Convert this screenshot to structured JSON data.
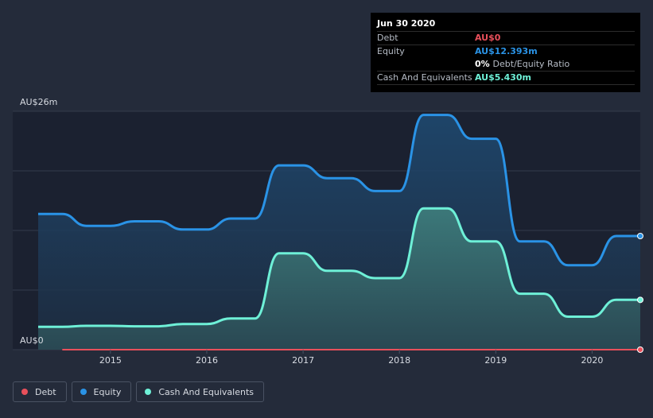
{
  "tooltip": {
    "date": "Jun 30 2020",
    "rows": [
      {
        "label": "Debt",
        "value": "AU$0",
        "color": "#e8505b"
      },
      {
        "label": "Equity",
        "value": "AU$12.393m",
        "color": "#2a93e6"
      },
      {
        "ratio_value": "0%",
        "ratio_label": "Debt/Equity Ratio"
      },
      {
        "label": "Cash And Equivalents",
        "value": "AU$5.430m",
        "color": "#6ef0d7"
      }
    ]
  },
  "legend": [
    {
      "label": "Debt",
      "color": "#e8505b"
    },
    {
      "label": "Equity",
      "color": "#2a93e6"
    },
    {
      "label": "Cash And Equivalents",
      "color": "#6ef0d7"
    }
  ],
  "chart_data": {
    "type": "area",
    "y_tick_labels": [
      "AU$0",
      "AU$26m"
    ],
    "x_tick_labels": [
      "2015",
      "2016",
      "2017",
      "2018",
      "2019",
      "2020"
    ],
    "ylim": [
      0,
      26
    ],
    "xlim": [
      2014.25,
      2020.5
    ],
    "grid": true,
    "legend_position": "bottom-left",
    "series": [
      {
        "name": "Debt",
        "color": "#e8505b",
        "points": [
          [
            2014.5,
            0
          ],
          [
            2020.5,
            0
          ]
        ]
      },
      {
        "name": "Equity",
        "color": "#2a93e6",
        "points": [
          [
            2014.25,
            14.8
          ],
          [
            2014.5,
            14.8
          ],
          [
            2014.75,
            13.5
          ],
          [
            2015.0,
            13.5
          ],
          [
            2015.25,
            14.0
          ],
          [
            2015.5,
            14.0
          ],
          [
            2015.75,
            13.1
          ],
          [
            2016.0,
            13.1
          ],
          [
            2016.25,
            14.3
          ],
          [
            2016.5,
            14.3
          ],
          [
            2016.75,
            20.1
          ],
          [
            2017.0,
            20.1
          ],
          [
            2017.25,
            18.7
          ],
          [
            2017.5,
            18.7
          ],
          [
            2017.75,
            17.3
          ],
          [
            2018.0,
            17.3
          ],
          [
            2018.25,
            25.6
          ],
          [
            2018.5,
            25.6
          ],
          [
            2018.75,
            23.0
          ],
          [
            2019.0,
            23.0
          ],
          [
            2019.25,
            11.8
          ],
          [
            2019.5,
            11.8
          ],
          [
            2019.75,
            9.2
          ],
          [
            2020.0,
            9.2
          ],
          [
            2020.25,
            12.393
          ],
          [
            2020.5,
            12.393
          ]
        ]
      },
      {
        "name": "Cash And Equivalents",
        "color": "#6ef0d7",
        "points": [
          [
            2014.25,
            2.5
          ],
          [
            2014.5,
            2.5
          ],
          [
            2014.75,
            2.6
          ],
          [
            2015.0,
            2.6
          ],
          [
            2015.25,
            2.55
          ],
          [
            2015.5,
            2.55
          ],
          [
            2015.75,
            2.8
          ],
          [
            2016.0,
            2.8
          ],
          [
            2016.25,
            3.4
          ],
          [
            2016.5,
            3.4
          ],
          [
            2016.75,
            10.5
          ],
          [
            2017.0,
            10.5
          ],
          [
            2017.25,
            8.6
          ],
          [
            2017.5,
            8.6
          ],
          [
            2017.75,
            7.8
          ],
          [
            2018.0,
            7.8
          ],
          [
            2018.25,
            15.4
          ],
          [
            2018.5,
            15.4
          ],
          [
            2018.75,
            11.8
          ],
          [
            2019.0,
            11.8
          ],
          [
            2019.25,
            6.1
          ],
          [
            2019.5,
            6.1
          ],
          [
            2019.75,
            3.6
          ],
          [
            2020.0,
            3.6
          ],
          [
            2020.25,
            5.43
          ],
          [
            2020.5,
            5.43
          ]
        ]
      }
    ]
  }
}
